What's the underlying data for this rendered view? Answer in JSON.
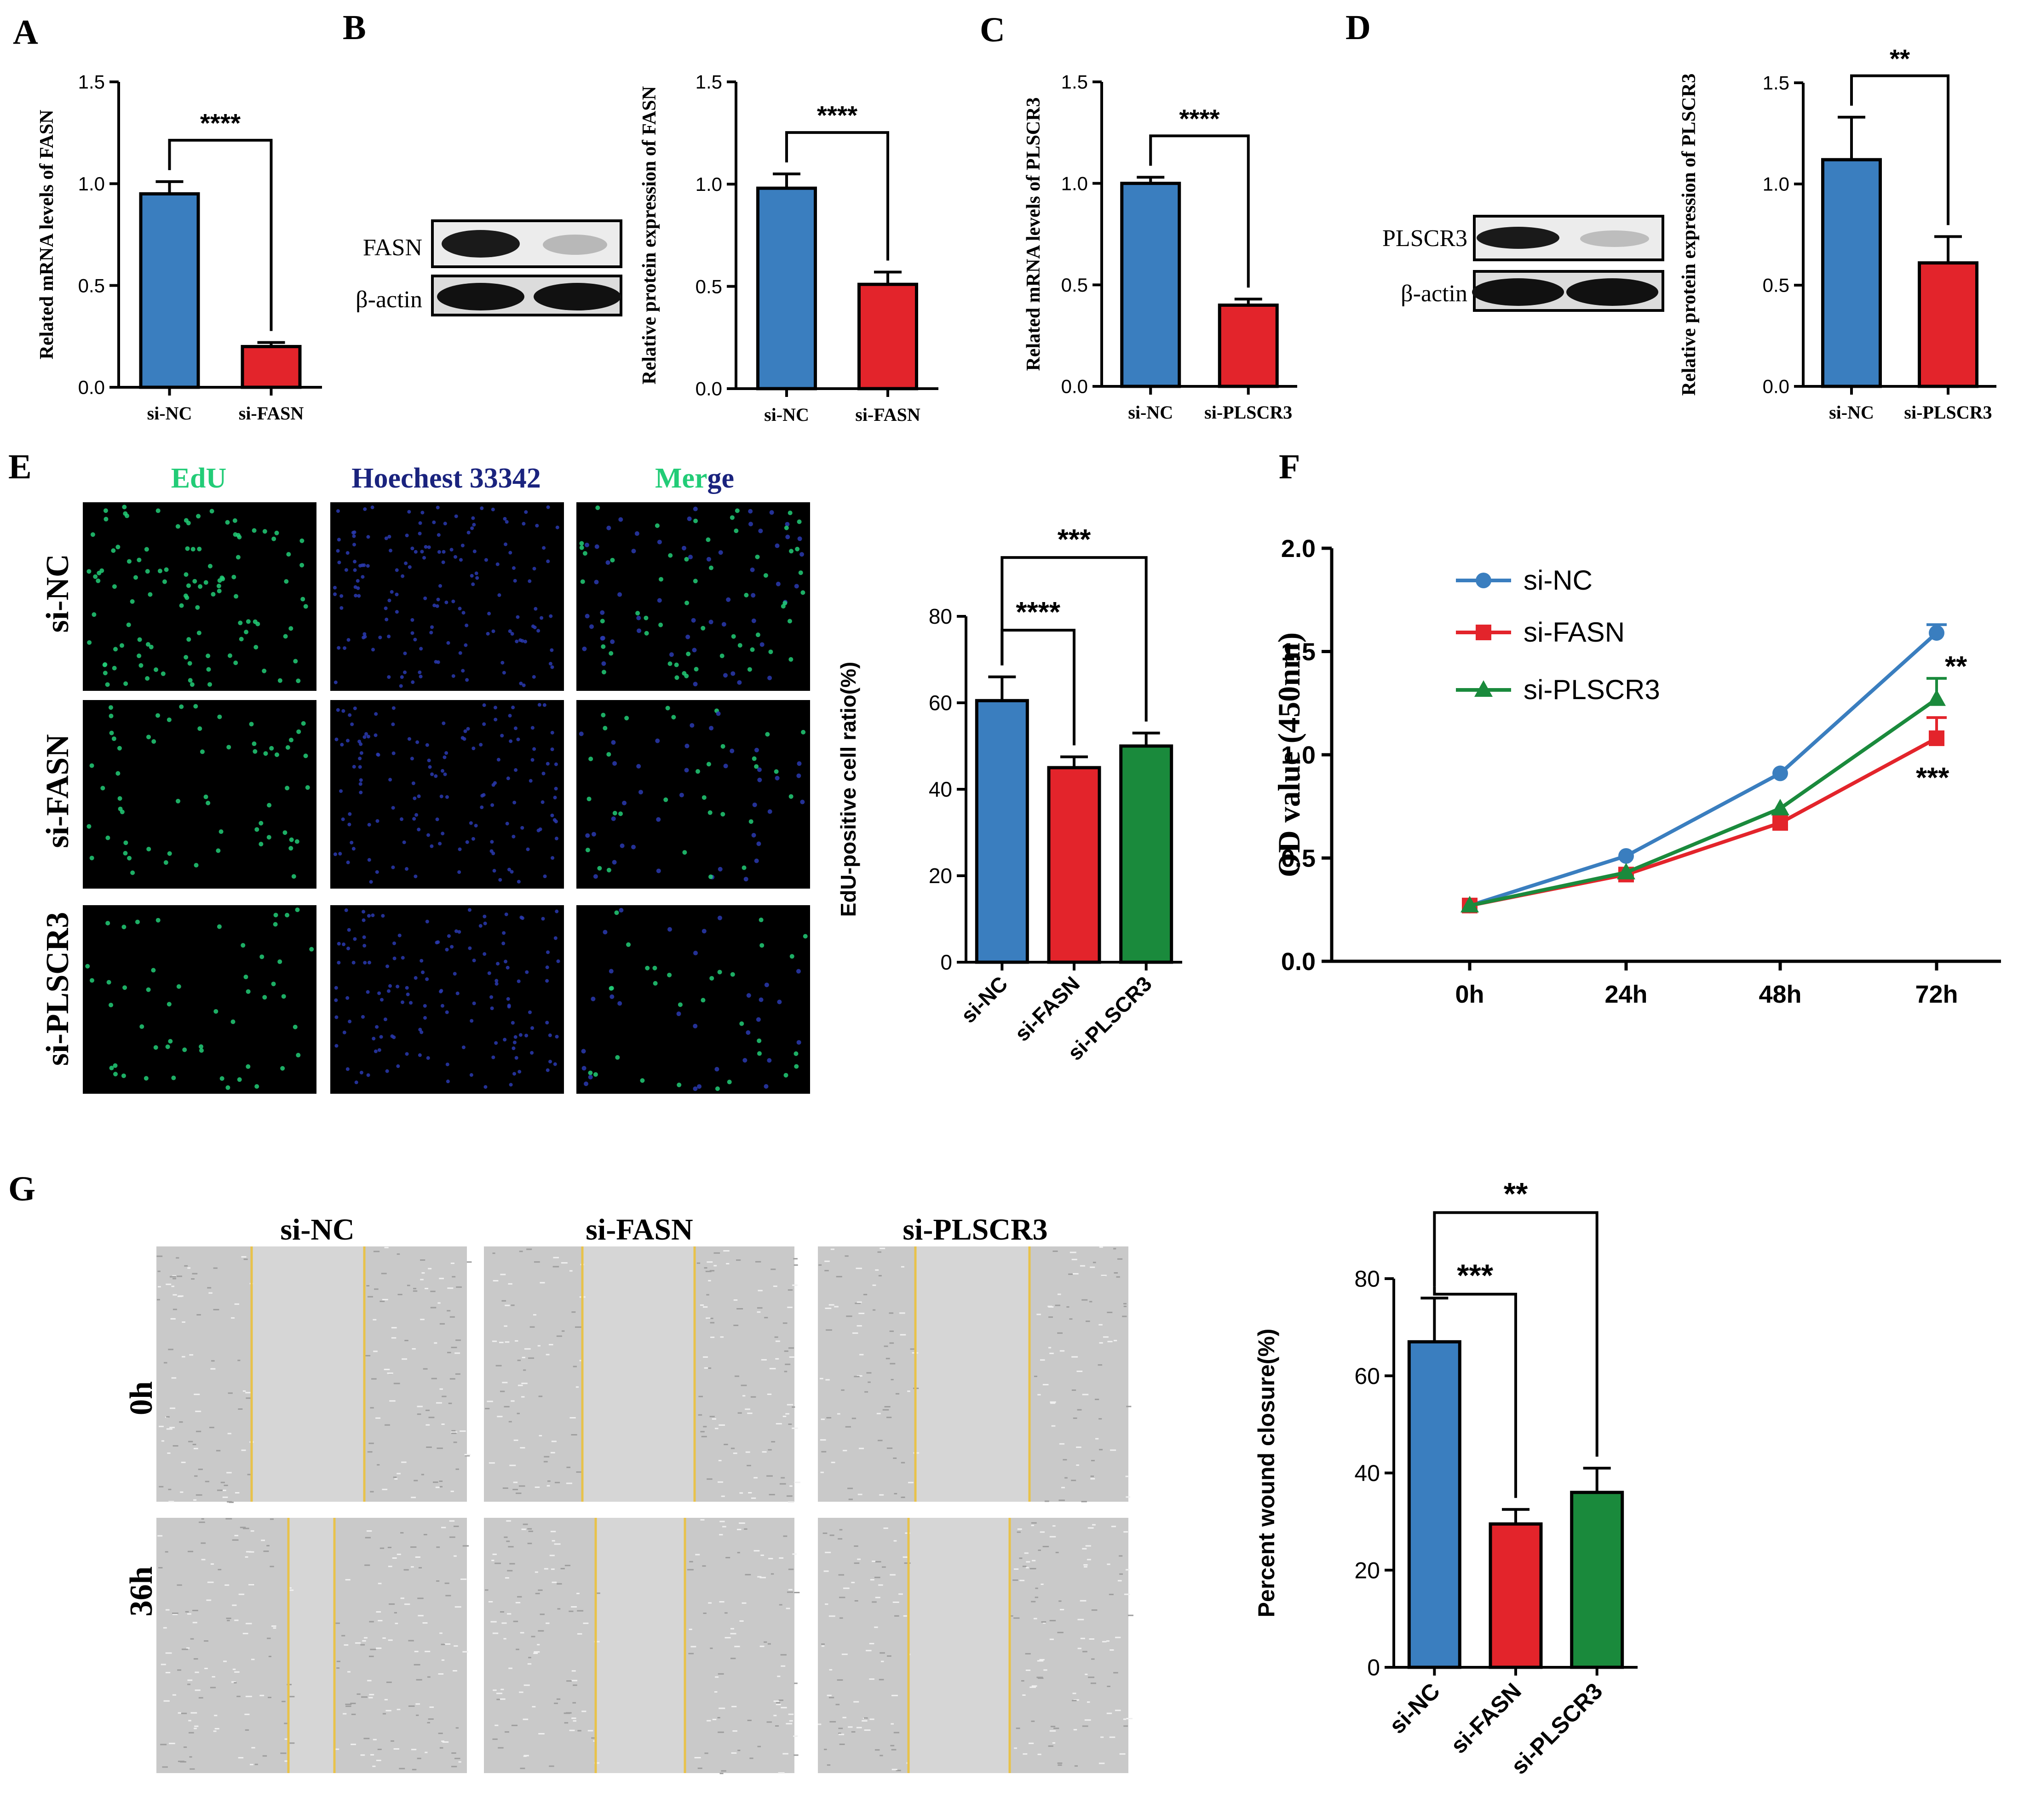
{
  "colors": {
    "blue": "#3a7ebf",
    "red": "#e3242b",
    "green": "#1a8a3c",
    "edu": "#22cc77",
    "hoechst": "#1a237e",
    "wound_line": "#e8c24a",
    "black": "#000000"
  },
  "panels": {
    "A": "A",
    "B": "B",
    "C": "C",
    "D": "D",
    "E": "E",
    "F": "F",
    "G": "G"
  },
  "western": {
    "B": {
      "target": "FASN",
      "loading": "β-actin"
    },
    "D": {
      "target": "PLSCR3",
      "loading": "β-actin"
    }
  },
  "panel_E": {
    "col_labels": [
      "EdU",
      "Hoechest 33342",
      "Merge"
    ],
    "merge_parts": [
      "Mer",
      "ge"
    ],
    "row_labels": [
      "si-NC",
      "si-FASN",
      "si-PLSCR3"
    ]
  },
  "panel_G": {
    "col_labels": [
      "si-NC",
      "si-FASN",
      "si-PLSCR3"
    ],
    "row_labels": [
      "0h",
      "36h"
    ]
  },
  "chart_data": [
    {
      "id": "A",
      "type": "bar",
      "categories": [
        "si-NC",
        "si-FASN"
      ],
      "values": [
        0.95,
        0.2
      ],
      "errors": [
        0.06,
        0.02
      ],
      "ylabel": "Related mRNA levels of FASN",
      "ylim": [
        0,
        1.5
      ],
      "yticks": [
        "0.0",
        "0.5",
        "1.0",
        "1.5"
      ],
      "significance": [
        {
          "pair": [
            0,
            1
          ],
          "label": "****"
        }
      ]
    },
    {
      "id": "B",
      "type": "bar",
      "categories": [
        "si-NC",
        "si-FASN"
      ],
      "values": [
        0.98,
        0.51
      ],
      "errors": [
        0.07,
        0.06
      ],
      "ylabel": "Relative protein expression of FASN",
      "ylim": [
        0,
        1.5
      ],
      "yticks": [
        "0.0",
        "0.5",
        "1.0",
        "1.5"
      ],
      "significance": [
        {
          "pair": [
            0,
            1
          ],
          "label": "****"
        }
      ]
    },
    {
      "id": "C",
      "type": "bar",
      "categories": [
        "si-NC",
        "si-PLSCR3"
      ],
      "values": [
        1.0,
        0.4
      ],
      "errors": [
        0.03,
        0.03
      ],
      "ylabel": "Related mRNA levels of PLSCR3",
      "ylim": [
        0,
        1.5
      ],
      "yticks": [
        "0.0",
        "0.5",
        "1.0",
        "1.5"
      ],
      "significance": [
        {
          "pair": [
            0,
            1
          ],
          "label": "****"
        }
      ]
    },
    {
      "id": "D",
      "type": "bar",
      "categories": [
        "si-NC",
        "si-PLSCR3"
      ],
      "values": [
        1.12,
        0.61
      ],
      "errors": [
        0.21,
        0.13
      ],
      "ylabel": "Relative protein expression of PLSCR3",
      "ylim": [
        0,
        1.5
      ],
      "yticks": [
        "0.0",
        "0.5",
        "1.0",
        "1.5"
      ],
      "significance": [
        {
          "pair": [
            0,
            1
          ],
          "label": "**"
        }
      ]
    },
    {
      "id": "E",
      "type": "bar",
      "categories": [
        "si-NC",
        "si-FASN",
        "si-PLSCR3"
      ],
      "values": [
        60.5,
        45,
        50
      ],
      "errors": [
        5.5,
        2.5,
        3
      ],
      "ylabel": "EdU-positive cell ratio(%)",
      "ylim": [
        0,
        80
      ],
      "yticks": [
        "0",
        "20",
        "40",
        "60",
        "80"
      ],
      "significance": [
        {
          "pair": [
            0,
            1
          ],
          "label": "****"
        },
        {
          "pair": [
            0,
            2
          ],
          "label": "***"
        }
      ]
    },
    {
      "id": "F",
      "type": "line",
      "x": [
        "0h",
        "24h",
        "48h",
        "72h"
      ],
      "series": [
        {
          "name": "si-NC",
          "values": [
            0.27,
            0.51,
            0.91,
            1.59
          ],
          "errors": [
            0.01,
            0.01,
            0.01,
            0.04
          ]
        },
        {
          "name": "si-FASN",
          "values": [
            0.27,
            0.42,
            0.67,
            1.08
          ],
          "errors": [
            0.01,
            0.01,
            0.01,
            0.1
          ]
        },
        {
          "name": "si-PLSCR3",
          "values": [
            0.27,
            0.43,
            0.74,
            1.27
          ],
          "errors": [
            0.01,
            0.01,
            0.01,
            0.1
          ]
        }
      ],
      "ylabel": "OD value (450nm)",
      "ylim": [
        0,
        2.0
      ],
      "yticks": [
        "0.0",
        "0.5",
        "1.0",
        "1.5",
        "2.0"
      ],
      "annotations": [
        "**",
        "***"
      ],
      "legend": "top-left"
    },
    {
      "id": "G",
      "type": "bar",
      "categories": [
        "si-NC",
        "si-FASN",
        "si-PLSCR3"
      ],
      "values": [
        67,
        29.5,
        36
      ],
      "errors": [
        9,
        3,
        5
      ],
      "ylabel": "Percent wound closure(%)",
      "ylim": [
        0,
        80
      ],
      "yticks": [
        "0",
        "20",
        "40",
        "60",
        "80"
      ],
      "significance": [
        {
          "pair": [
            0,
            1
          ],
          "label": "***"
        },
        {
          "pair": [
            0,
            2
          ],
          "label": "**"
        }
      ]
    }
  ]
}
